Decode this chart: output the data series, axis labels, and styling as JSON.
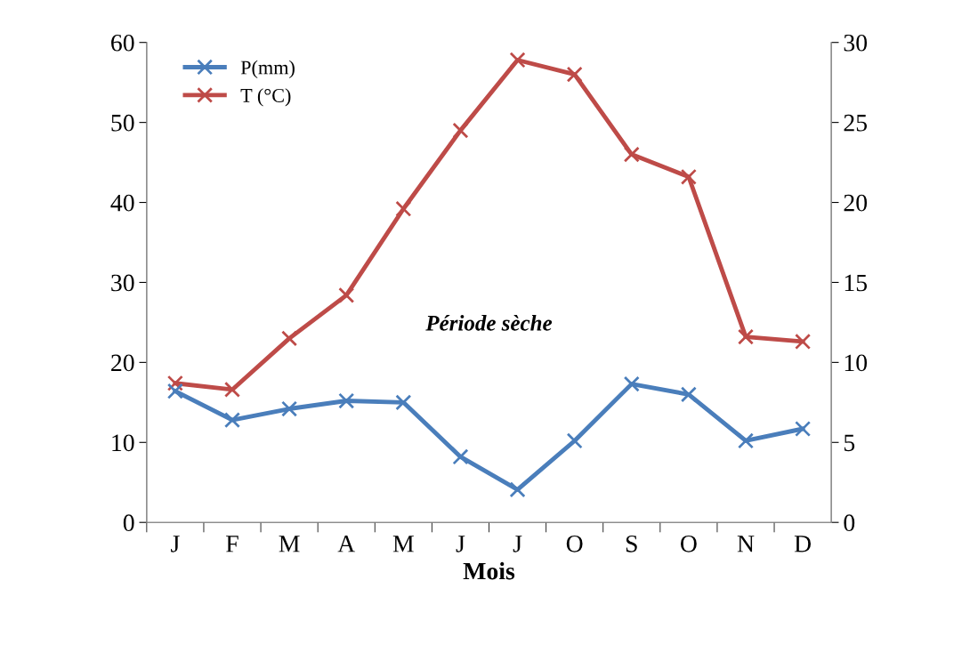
{
  "chart_data": {
    "type": "line",
    "xlabel": "Mois",
    "categories": [
      "J",
      "F",
      "M",
      "A",
      "M",
      "J",
      "J",
      "O",
      "S",
      "O",
      "N",
      "D"
    ],
    "series": [
      {
        "name": "P(mm)",
        "color": "#4a7ebb",
        "values": [
          16.4,
          12.8,
          14.2,
          15.2,
          15.0,
          8.2,
          4.1,
          10.2,
          17.3,
          16.0,
          10.2,
          11.7
        ]
      },
      {
        "name": "T (°C)",
        "color": "#be4b48",
        "axis": "y2",
        "values": [
          8.7,
          8.3,
          11.5,
          14.2,
          19.6,
          24.5,
          28.9,
          28.0,
          23.0,
          21.6,
          11.6,
          11.3
        ]
      }
    ],
    "ylim": [
      0,
      60
    ],
    "yticks": [
      0,
      10,
      20,
      30,
      40,
      50,
      60
    ],
    "y2lim": [
      0,
      30
    ],
    "y2ticks": [
      0,
      5,
      10,
      15,
      20,
      25,
      30
    ],
    "annotations": [
      "Période sèche"
    ],
    "legend": "top left",
    "marker": "cross",
    "line_style": "solid",
    "grid": false
  }
}
